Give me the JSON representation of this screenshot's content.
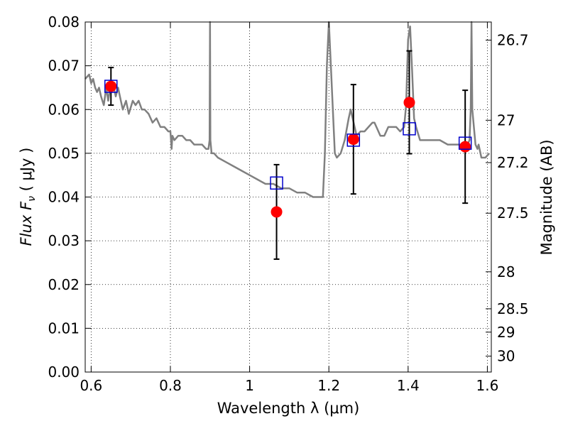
{
  "chart_data": {
    "type": "scatter",
    "xlabel": "Wavelength  λ (μm)",
    "ylabel": "Flux  F",
    "ylabel_sub": "ν",
    "ylabel_unit": "  ( μJy )",
    "y2label": "Magnitude (AB)",
    "xlim": [
      0.585,
      1.61
    ],
    "ylim": [
      0.0,
      0.08
    ],
    "x_ticks": [
      0.6,
      0.8,
      1.0,
      1.2,
      1.4,
      1.6
    ],
    "x_tick_labels": [
      "0.6",
      "0.8",
      "1",
      "1.2",
      "1.4",
      "1.6"
    ],
    "y_ticks": [
      0.0,
      0.01,
      0.02,
      0.03,
      0.04,
      0.05,
      0.06,
      0.07,
      0.08
    ],
    "y_tick_labels": [
      "0.00",
      "0.01",
      "0.02",
      "0.03",
      "0.04",
      "0.05",
      "0.06",
      "0.07",
      "0.08"
    ],
    "y2_ticks": [
      26.7,
      27,
      27.2,
      27.5,
      28,
      28.5,
      29,
      30
    ],
    "y2_tick_labels": [
      "26.7",
      "27",
      "27.2",
      "27.5",
      "28",
      "28.5",
      "29",
      "30"
    ],
    "grid": true,
    "colors": {
      "model": "#808080",
      "observed": "#ff0000",
      "synthetic": "#0000cc",
      "errorbar": "#000000"
    },
    "model_spectrum": {
      "x": [
        0.585,
        0.595,
        0.6,
        0.605,
        0.61,
        0.615,
        0.62,
        0.625,
        0.632,
        0.638,
        0.643,
        0.648,
        0.655,
        0.662,
        0.668,
        0.675,
        0.68,
        0.688,
        0.695,
        0.705,
        0.712,
        0.72,
        0.728,
        0.735,
        0.745,
        0.755,
        0.765,
        0.775,
        0.785,
        0.795,
        0.8,
        0.803,
        0.805,
        0.81,
        0.82,
        0.83,
        0.84,
        0.85,
        0.86,
        0.87,
        0.88,
        0.89,
        0.896,
        0.899,
        0.9,
        0.901,
        0.904,
        0.91,
        0.92,
        0.94,
        0.96,
        0.98,
        1.0,
        1.02,
        1.04,
        1.06,
        1.08,
        1.1,
        1.12,
        1.14,
        1.16,
        1.175,
        1.185,
        1.19,
        1.195,
        1.2,
        1.205,
        1.21,
        1.215,
        1.22,
        1.23,
        1.24,
        1.25,
        1.255,
        1.26,
        1.27,
        1.28,
        1.29,
        1.3,
        1.31,
        1.315,
        1.32,
        1.33,
        1.34,
        1.35,
        1.36,
        1.37,
        1.38,
        1.39,
        1.395,
        1.4,
        1.405,
        1.41,
        1.415,
        1.42,
        1.43,
        1.44,
        1.46,
        1.48,
        1.5,
        1.52,
        1.54,
        1.55,
        1.555,
        1.558,
        1.56,
        1.562,
        1.57,
        1.575,
        1.578,
        1.585,
        1.595,
        1.605
      ],
      "y": [
        0.067,
        0.068,
        0.066,
        0.067,
        0.065,
        0.064,
        0.065,
        0.063,
        0.061,
        0.065,
        0.062,
        0.065,
        0.066,
        0.063,
        0.065,
        0.062,
        0.06,
        0.062,
        0.059,
        0.062,
        0.061,
        0.062,
        0.06,
        0.06,
        0.059,
        0.057,
        0.058,
        0.056,
        0.056,
        0.055,
        0.055,
        0.051,
        0.054,
        0.053,
        0.054,
        0.054,
        0.053,
        0.053,
        0.052,
        0.052,
        0.052,
        0.051,
        0.051,
        0.053,
        0.08,
        0.053,
        0.05,
        0.05,
        0.049,
        0.048,
        0.047,
        0.046,
        0.045,
        0.044,
        0.043,
        0.043,
        0.042,
        0.042,
        0.041,
        0.041,
        0.04,
        0.04,
        0.04,
        0.05,
        0.07,
        0.08,
        0.07,
        0.06,
        0.05,
        0.049,
        0.05,
        0.053,
        0.058,
        0.06,
        0.058,
        0.054,
        0.055,
        0.055,
        0.056,
        0.057,
        0.057,
        0.056,
        0.054,
        0.054,
        0.056,
        0.056,
        0.056,
        0.055,
        0.056,
        0.061,
        0.076,
        0.079,
        0.069,
        0.058,
        0.056,
        0.053,
        0.053,
        0.053,
        0.053,
        0.052,
        0.052,
        0.052,
        0.052,
        0.053,
        0.06,
        0.08,
        0.06,
        0.052,
        0.051,
        0.052,
        0.049,
        0.049,
        0.05
      ]
    },
    "observed_flux": {
      "x": [
        0.65,
        1.068,
        1.262,
        1.403,
        1.544
      ],
      "y": [
        0.0653,
        0.0366,
        0.0532,
        0.0616,
        0.0515
      ],
      "yerr_low": [
        0.061,
        0.0258,
        0.0407,
        0.0499,
        0.0386
      ],
      "yerr_high": [
        0.0696,
        0.0474,
        0.0657,
        0.0734,
        0.0644
      ]
    },
    "synthetic_flux": {
      "x": [
        0.65,
        1.068,
        1.262,
        1.403,
        1.544
      ],
      "y": [
        0.0653,
        0.0432,
        0.053,
        0.0556,
        0.0523
      ]
    }
  }
}
